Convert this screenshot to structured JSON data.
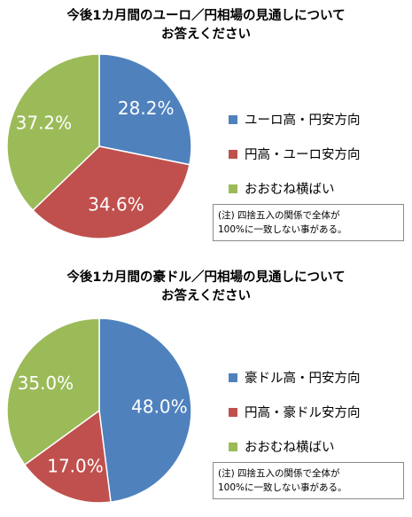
{
  "chart_data": [
    {
      "type": "pie",
      "title": "今後1カ月間のユーロ／円相場の見通しについて\nお答えください",
      "title_lines": [
        "今後1カ月間のユーロ／円相場の見通しについて",
        "お答えください"
      ],
      "categories": [
        "ユーロ高・円安方向",
        "円高・ユーロ安方向",
        "おおむね横ばい"
      ],
      "values": [
        28.2,
        34.6,
        37.2
      ],
      "value_labels": [
        "28.2%",
        "34.6%",
        "37.2%"
      ],
      "colors": [
        "#4f81bd",
        "#c0504d",
        "#9bbb59"
      ],
      "legend": "right",
      "note_lines": [
        "(注) 四捨五入の関係で全体が",
        "100%に一致しない事がある。"
      ]
    },
    {
      "type": "pie",
      "title": "今後1カ月間の豪ドル／円相場の見通しについて\nお答えください",
      "title_lines": [
        "今後1カ月間の豪ドル／円相場の見通しについて",
        "お答えください"
      ],
      "categories": [
        "豪ドル高・円安方向",
        "円高・豪ドル安方向",
        "おおむね横ばい"
      ],
      "values": [
        48.0,
        17.0,
        35.0
      ],
      "value_labels": [
        "48.0%",
        "17.0%",
        "35.0%"
      ],
      "colors": [
        "#4f81bd",
        "#c0504d",
        "#9bbb59"
      ],
      "legend": "right",
      "note_lines": [
        "(注) 四捨五入の関係で全体が",
        "100%に一致しない事がある。"
      ]
    }
  ]
}
